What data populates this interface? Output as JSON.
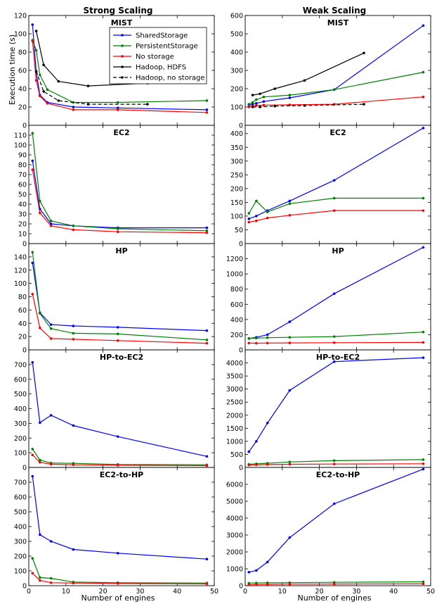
{
  "column_titles": {
    "left": "Strong Scaling",
    "right": "Weak Scaling"
  },
  "ylabel": "Execution time (s)",
  "xlabel": "Number of engines",
  "legend": [
    {
      "label": "SharedStorage",
      "color": "#0000ff",
      "dash": false
    },
    {
      "label": "PersistentStorage",
      "color": "#008000",
      "dash": false
    },
    {
      "label": "No storage",
      "color": "#ff0000",
      "dash": false
    },
    {
      "label": "Hadoop, HDFS",
      "color": "#000000",
      "dash": false
    },
    {
      "label": "Hadoop, no storage",
      "color": "#000000",
      "dash": true
    }
  ],
  "colors": {
    "shared": "#0000ff",
    "persistent": "#008000",
    "nostorage": "#ff0000",
    "hadoop": "#000000"
  },
  "chart_data": [
    {
      "type": "line",
      "title": "MIST",
      "column": "strong",
      "xlim": [
        0,
        50
      ],
      "ylim": [
        0,
        120
      ],
      "xticks": [
        0,
        10,
        20,
        30,
        40,
        50
      ],
      "yticks": [
        0,
        20,
        40,
        60,
        80,
        100,
        120
      ],
      "series": [
        {
          "name": "SharedStorage",
          "color": "#0000ff",
          "x": [
            1,
            2,
            3,
            5,
            12,
            24,
            48
          ],
          "y": [
            110,
            58,
            33,
            25,
            20,
            19,
            17
          ]
        },
        {
          "name": "PersistentStorage",
          "color": "#008000",
          "x": [
            1,
            2,
            3,
            5,
            12,
            24,
            48
          ],
          "y": [
            93,
            82,
            55,
            39,
            25,
            25,
            27
          ]
        },
        {
          "name": "No storage",
          "color": "#ff0000",
          "x": [
            1,
            2,
            3,
            5,
            12,
            24,
            48
          ],
          "y": [
            92,
            49,
            32,
            24,
            17,
            17,
            14
          ]
        },
        {
          "name": "Hadoop, HDFS",
          "color": "#000000",
          "x": [
            2,
            4,
            8,
            16,
            32
          ],
          "y": [
            103,
            66,
            48,
            43,
            46
          ]
        },
        {
          "name": "Hadoop, no storage",
          "color": "#000000",
          "dashed": true,
          "x": [
            2,
            4,
            8,
            16,
            32
          ],
          "y": [
            59,
            37,
            27,
            23,
            23
          ]
        }
      ]
    },
    {
      "type": "line",
      "title": "MIST",
      "column": "weak",
      "xlim": [
        0,
        50
      ],
      "ylim": [
        0,
        600
      ],
      "xticks": [
        0,
        10,
        20,
        30,
        40,
        50
      ],
      "yticks": [
        0,
        100,
        200,
        300,
        400,
        500,
        600
      ],
      "series": [
        {
          "name": "SharedStorage",
          "color": "#0000ff",
          "x": [
            1,
            2,
            3,
            5,
            12,
            24,
            48
          ],
          "y": [
            110,
            115,
            120,
            130,
            150,
            195,
            545
          ]
        },
        {
          "name": "PersistentStorage",
          "color": "#008000",
          "x": [
            1,
            2,
            3,
            5,
            12,
            24,
            48
          ],
          "y": [
            115,
            125,
            140,
            155,
            165,
            195,
            290
          ]
        },
        {
          "name": "No storage",
          "color": "#ff0000",
          "x": [
            1,
            2,
            3,
            5,
            12,
            24,
            48
          ],
          "y": [
            100,
            105,
            108,
            110,
            112,
            115,
            155
          ]
        },
        {
          "name": "Hadoop, HDFS",
          "color": "#000000",
          "x": [
            2,
            4,
            8,
            16,
            32
          ],
          "y": [
            165,
            172,
            200,
            245,
            395
          ]
        },
        {
          "name": "Hadoop, no storage",
          "color": "#000000",
          "dashed": true,
          "x": [
            2,
            4,
            8,
            16,
            32
          ],
          "y": [
            100,
            100,
            105,
            108,
            115
          ]
        }
      ]
    },
    {
      "type": "line",
      "title": "EC2",
      "column": "strong",
      "xlim": [
        0,
        50
      ],
      "ylim": [
        0,
        120
      ],
      "xticks": [
        0,
        10,
        20,
        30,
        40,
        50
      ],
      "yticks": [
        0,
        10,
        20,
        30,
        40,
        50,
        60,
        70,
        80,
        90,
        100,
        110
      ],
      "series": [
        {
          "name": "SharedStorage",
          "color": "#0000ff",
          "x": [
            1,
            3,
            6,
            12,
            24,
            48
          ],
          "y": [
            84,
            35,
            20,
            18,
            16,
            16
          ]
        },
        {
          "name": "PersistentStorage",
          "color": "#008000",
          "x": [
            1,
            3,
            6,
            12,
            24,
            48
          ],
          "y": [
            112,
            43,
            23,
            18,
            15,
            13
          ]
        },
        {
          "name": "No storage",
          "color": "#ff0000",
          "x": [
            1,
            3,
            6,
            12,
            24,
            48
          ],
          "y": [
            75,
            31,
            18,
            14,
            12,
            11
          ]
        }
      ]
    },
    {
      "type": "line",
      "title": "EC2",
      "column": "weak",
      "xlim": [
        0,
        50
      ],
      "ylim": [
        0,
        430
      ],
      "xticks": [
        0,
        10,
        20,
        30,
        40,
        50
      ],
      "yticks": [
        0,
        50,
        100,
        150,
        200,
        250,
        300,
        350,
        400
      ],
      "series": [
        {
          "name": "SharedStorage",
          "color": "#0000ff",
          "x": [
            1,
            3,
            6,
            12,
            24,
            48
          ],
          "y": [
            90,
            100,
            120,
            155,
            230,
            420
          ]
        },
        {
          "name": "PersistentStorage",
          "color": "#008000",
          "x": [
            1,
            3,
            6,
            12,
            24,
            48
          ],
          "y": [
            110,
            155,
            115,
            145,
            165,
            165
          ]
        },
        {
          "name": "No storage",
          "color": "#ff0000",
          "x": [
            1,
            3,
            6,
            12,
            24,
            48
          ],
          "y": [
            78,
            83,
            93,
            103,
            120,
            120
          ]
        }
      ]
    },
    {
      "type": "line",
      "title": "HP",
      "column": "strong",
      "xlim": [
        0,
        50
      ],
      "ylim": [
        0,
        160
      ],
      "xticks": [
        0,
        10,
        20,
        30,
        40,
        50
      ],
      "yticks": [
        0,
        20,
        40,
        60,
        80,
        100,
        120,
        140
      ],
      "series": [
        {
          "name": "SharedStorage",
          "color": "#0000ff",
          "x": [
            1,
            3,
            6,
            12,
            24,
            48
          ],
          "y": [
            131,
            56,
            38,
            36,
            34,
            29
          ]
        },
        {
          "name": "PersistentStorage",
          "color": "#008000",
          "x": [
            1,
            3,
            6,
            12,
            24,
            48
          ],
          "y": [
            147,
            55,
            32,
            25,
            24,
            15
          ]
        },
        {
          "name": "No storage",
          "color": "#ff0000",
          "x": [
            1,
            3,
            6,
            12,
            24,
            48
          ],
          "y": [
            84,
            33,
            17,
            16,
            14,
            10
          ]
        }
      ]
    },
    {
      "type": "line",
      "title": "HP",
      "column": "weak",
      "xlim": [
        0,
        50
      ],
      "ylim": [
        0,
        1400
      ],
      "xticks": [
        0,
        10,
        20,
        30,
        40,
        50
      ],
      "yticks": [
        0,
        200,
        400,
        600,
        800,
        1000,
        1200
      ],
      "series": [
        {
          "name": "SharedStorage",
          "color": "#0000ff",
          "x": [
            1,
            3,
            6,
            12,
            24,
            48
          ],
          "y": [
            150,
            165,
            200,
            370,
            740,
            1350
          ]
        },
        {
          "name": "PersistentStorage",
          "color": "#008000",
          "x": [
            1,
            3,
            6,
            12,
            24,
            48
          ],
          "y": [
            150,
            155,
            160,
            165,
            175,
            235
          ]
        },
        {
          "name": "No storage",
          "color": "#ff0000",
          "x": [
            1,
            3,
            6,
            12,
            24,
            48
          ],
          "y": [
            90,
            88,
            90,
            92,
            95,
            98
          ]
        }
      ]
    },
    {
      "type": "line",
      "title": "HP-to-EC2",
      "column": "strong",
      "xlim": [
        0,
        50
      ],
      "ylim": [
        0,
        800
      ],
      "xticks": [
        0,
        10,
        20,
        30,
        40,
        50
      ],
      "yticks": [
        0,
        100,
        200,
        300,
        400,
        500,
        600,
        700
      ],
      "series": [
        {
          "name": "SharedStorage",
          "color": "#0000ff",
          "x": [
            1,
            3,
            6,
            12,
            24,
            48
          ],
          "y": [
            715,
            305,
            355,
            285,
            210,
            75
          ]
        },
        {
          "name": "PersistentStorage",
          "color": "#008000",
          "x": [
            1,
            3,
            6,
            12,
            24,
            48
          ],
          "y": [
            125,
            50,
            30,
            28,
            20,
            18
          ]
        },
        {
          "name": "No storage",
          "color": "#ff0000",
          "x": [
            1,
            3,
            6,
            12,
            24,
            48
          ],
          "y": [
            85,
            35,
            22,
            18,
            15,
            12
          ]
        }
      ]
    },
    {
      "type": "line",
      "title": "HP-to-EC2",
      "column": "weak",
      "xlim": [
        0,
        50
      ],
      "ylim": [
        0,
        4500
      ],
      "xticks": [
        0,
        10,
        20,
        30,
        40,
        50
      ],
      "yticks": [
        0,
        500,
        1000,
        1500,
        2000,
        2500,
        3000,
        3500,
        4000
      ],
      "series": [
        {
          "name": "SharedStorage",
          "color": "#0000ff",
          "x": [
            1,
            3,
            6,
            12,
            24,
            48
          ],
          "y": [
            600,
            1000,
            1700,
            2950,
            4050,
            4200
          ]
        },
        {
          "name": "PersistentStorage",
          "color": "#008000",
          "x": [
            1,
            3,
            6,
            12,
            24,
            48
          ],
          "y": [
            120,
            140,
            160,
            210,
            260,
            300
          ]
        },
        {
          "name": "No storage",
          "color": "#ff0000",
          "x": [
            1,
            3,
            6,
            12,
            24,
            48
          ],
          "y": [
            90,
            100,
            110,
            120,
            130,
            140
          ]
        }
      ]
    },
    {
      "type": "line",
      "title": "EC2-to-HP",
      "column": "strong",
      "xlim": [
        0,
        50
      ],
      "ylim": [
        0,
        800
      ],
      "xticks": [
        0,
        10,
        20,
        30,
        40,
        50
      ],
      "yticks": [
        0,
        100,
        200,
        300,
        400,
        500,
        600,
        700
      ],
      "series": [
        {
          "name": "SharedStorage",
          "color": "#0000ff",
          "x": [
            1,
            3,
            6,
            12,
            24,
            48
          ],
          "y": [
            740,
            345,
            300,
            245,
            220,
            180
          ]
        },
        {
          "name": "PersistentStorage",
          "color": "#008000",
          "x": [
            1,
            3,
            6,
            12,
            24,
            48
          ],
          "y": [
            185,
            55,
            50,
            25,
            20,
            18
          ]
        },
        {
          "name": "No storage",
          "color": "#ff0000",
          "x": [
            1,
            3,
            6,
            12,
            24,
            48
          ],
          "y": [
            85,
            35,
            20,
            18,
            15,
            12
          ]
        }
      ]
    },
    {
      "type": "line",
      "title": "EC2-to-HP",
      "column": "weak",
      "xlim": [
        0,
        50
      ],
      "ylim": [
        0,
        7000
      ],
      "xticks": [
        0,
        10,
        20,
        30,
        40,
        50
      ],
      "yticks": [
        0,
        1000,
        2000,
        3000,
        4000,
        5000,
        6000
      ],
      "series": [
        {
          "name": "SharedStorage",
          "color": "#0000ff",
          "x": [
            1,
            3,
            6,
            12,
            24,
            48
          ],
          "y": [
            800,
            900,
            1400,
            2850,
            4850,
            6900
          ]
        },
        {
          "name": "PersistentStorage",
          "color": "#008000",
          "x": [
            1,
            3,
            6,
            12,
            24,
            48
          ],
          "y": [
            150,
            160,
            170,
            180,
            200,
            230
          ]
        },
        {
          "name": "No storage",
          "color": "#ff0000",
          "x": [
            1,
            3,
            6,
            12,
            24,
            48
          ],
          "y": [
            60,
            70,
            80,
            90,
            100,
            110
          ]
        }
      ]
    }
  ]
}
